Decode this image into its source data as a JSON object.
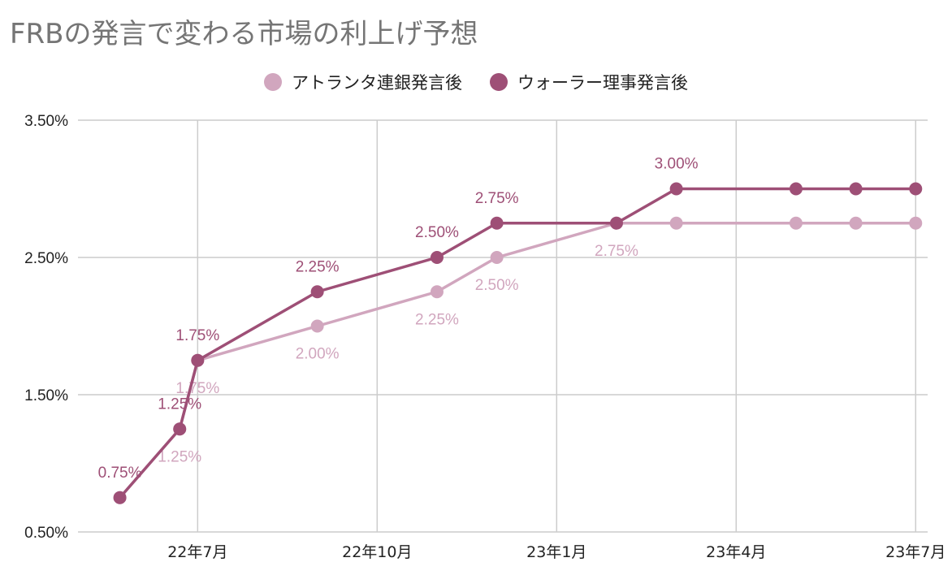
{
  "chart_data": {
    "type": "line",
    "title": "FRBの発言で変わる市場の利上げ予想",
    "xlabel": "",
    "ylabel": "",
    "ylim": [
      0.5,
      3.5
    ],
    "y_ticks": [
      "0.50%",
      "1.50%",
      "2.50%",
      "3.50%"
    ],
    "y_tick_values": [
      0.5,
      1.5,
      2.5,
      3.5
    ],
    "x_ticks": [
      "22年7月",
      "22年10月",
      "23年1月",
      "23年4月",
      "23年7月"
    ],
    "x_tick_positions": [
      2,
      5,
      8,
      11,
      14
    ],
    "x": [
      0.7,
      1.7,
      2.0,
      4.0,
      6.0,
      7.0,
      9.0,
      10.0,
      12.0,
      13.0,
      14.0
    ],
    "x_domain": [
      0,
      14.2
    ],
    "grid": true,
    "legend_position": "top",
    "series": [
      {
        "name": "アトランタ連銀発言後",
        "color": "#d1a6be",
        "values": [
          0.75,
          1.25,
          1.75,
          2.0,
          2.25,
          2.5,
          2.75,
          2.75,
          2.75,
          2.75,
          2.75
        ],
        "labels": [
          "",
          "1.25%",
          "1.75%",
          "2.00%",
          "2.25%",
          "2.50%",
          "2.75%",
          "",
          "",
          "",
          ""
        ]
      },
      {
        "name": "ウォーラー理事発言後",
        "color": "#9e4f76",
        "values": [
          0.75,
          1.25,
          1.75,
          2.25,
          2.5,
          2.75,
          2.75,
          3.0,
          3.0,
          3.0,
          3.0
        ],
        "labels": [
          "0.75%",
          "1.25%",
          "1.75%",
          "2.25%",
          "2.50%",
          "2.75%",
          "",
          "3.00%",
          "",
          "",
          ""
        ]
      }
    ]
  }
}
